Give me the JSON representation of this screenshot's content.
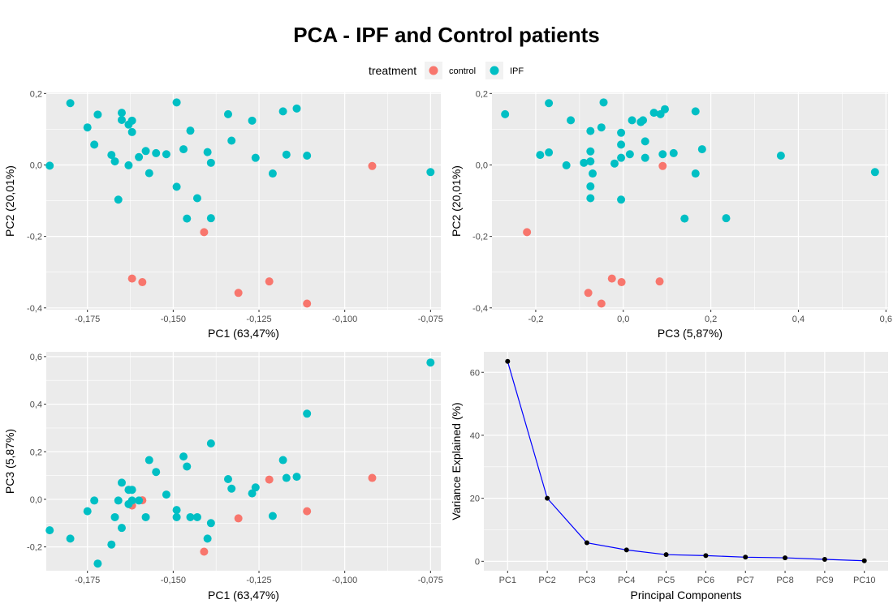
{
  "title": "PCA - IPF and Control patients",
  "legend": {
    "title": "treatment",
    "entries": [
      {
        "label": "control",
        "color": "#F8766D"
      },
      {
        "label": "IPF",
        "color": "#00BFC4"
      }
    ]
  },
  "colors": {
    "control": "#F8766D",
    "IPF": "#00BFC4",
    "panel_bg": "#EBEBEB",
    "grid": "#FFFFFF",
    "variance_line": "#0000FF",
    "variance_point": "#000000"
  },
  "chart_data": [
    {
      "type": "scatter",
      "xlabel": "PC1 (63,47%)",
      "ylabel": "PC2 (20,01%)",
      "xlim": [
        -0.187,
        -0.072
      ],
      "ylim": [
        -0.405,
        0.203
      ],
      "xticks": [
        -0.175,
        -0.15,
        -0.125,
        -0.1,
        -0.075
      ],
      "xtick_labels": [
        "-0,175",
        "-0,150",
        "-0,125",
        "-0,100",
        "-0,075"
      ],
      "yticks": [
        -0.4,
        -0.2,
        0.0,
        0.2
      ],
      "ytick_labels": [
        "-0,4",
        "-0,2",
        "0,0",
        "0,2"
      ],
      "grid": true,
      "series": [
        {
          "name": "control",
          "color": "#F8766D",
          "points": [
            [
              -0.092,
              -0.003
            ],
            [
              -0.141,
              -0.188
            ],
            [
              -0.162,
              -0.318
            ],
            [
              -0.159,
              -0.328
            ],
            [
              -0.131,
              -0.358
            ],
            [
              -0.122,
              -0.326
            ],
            [
              -0.111,
              -0.388
            ]
          ]
        },
        {
          "name": "IPF",
          "color": "#00BFC4",
          "points": [
            [
              -0.18,
              0.173
            ],
            [
              -0.149,
              0.175
            ],
            [
              -0.172,
              0.141
            ],
            [
              -0.165,
              0.146
            ],
            [
              -0.165,
              0.126
            ],
            [
              -0.163,
              0.113
            ],
            [
              -0.162,
              0.124
            ],
            [
              -0.162,
              0.092
            ],
            [
              -0.175,
              0.105
            ],
            [
              -0.134,
              0.142
            ],
            [
              -0.127,
              0.124
            ],
            [
              -0.118,
              0.15
            ],
            [
              -0.114,
              0.158
            ],
            [
              -0.145,
              0.096
            ],
            [
              -0.173,
              0.057
            ],
            [
              -0.168,
              0.028
            ],
            [
              -0.167,
              0.01
            ],
            [
              -0.163,
              -0.001
            ],
            [
              -0.16,
              0.022
            ],
            [
              -0.158,
              0.039
            ],
            [
              -0.155,
              0.033
            ],
            [
              -0.152,
              0.03
            ],
            [
              -0.147,
              0.044
            ],
            [
              -0.14,
              0.036
            ],
            [
              -0.139,
              0.006
            ],
            [
              -0.133,
              0.068
            ],
            [
              -0.126,
              0.02
            ],
            [
              -0.117,
              0.029
            ],
            [
              -0.111,
              0.026
            ],
            [
              -0.157,
              -0.023
            ],
            [
              -0.121,
              -0.024
            ],
            [
              -0.186,
              -0.002
            ],
            [
              -0.075,
              -0.02
            ],
            [
              -0.166,
              -0.097
            ],
            [
              -0.149,
              -0.061
            ],
            [
              -0.143,
              -0.093
            ],
            [
              -0.146,
              -0.15
            ],
            [
              -0.139,
              -0.149
            ]
          ]
        }
      ]
    },
    {
      "type": "scatter",
      "xlabel": "PC3 (5,87%)",
      "ylabel": "PC2 (20,01%)",
      "xlim": [
        -0.3,
        0.605
      ],
      "ylim": [
        -0.405,
        0.203
      ],
      "xticks": [
        -0.2,
        0.0,
        0.2,
        0.4,
        0.6
      ],
      "xtick_labels": [
        "-0,2",
        "0,0",
        "0,2",
        "0,4",
        "0,6"
      ],
      "yticks": [
        -0.4,
        -0.2,
        0.0,
        0.2
      ],
      "ytick_labels": [
        "-0,4",
        "-0,2",
        "0,0",
        "0,2"
      ],
      "grid": true,
      "series": [
        {
          "name": "control",
          "color": "#F8766D",
          "points": [
            [
              0.09,
              -0.003
            ],
            [
              -0.22,
              -0.188
            ],
            [
              -0.026,
              -0.318
            ],
            [
              -0.004,
              -0.328
            ],
            [
              -0.08,
              -0.358
            ],
            [
              0.083,
              -0.326
            ],
            [
              -0.05,
              -0.388
            ]
          ]
        },
        {
          "name": "IPF",
          "color": "#00BFC4",
          "points": [
            [
              -0.27,
              0.142
            ],
            [
              -0.17,
              0.173
            ],
            [
              -0.045,
              0.175
            ],
            [
              -0.12,
              0.125
            ],
            [
              -0.075,
              0.095
            ],
            [
              -0.05,
              0.105
            ],
            [
              -0.005,
              0.09
            ],
            [
              0.02,
              0.125
            ],
            [
              0.04,
              0.12
            ],
            [
              0.045,
              0.125
            ],
            [
              0.07,
              0.146
            ],
            [
              0.085,
              0.142
            ],
            [
              0.095,
              0.156
            ],
            [
              0.165,
              0.15
            ],
            [
              -0.005,
              0.057
            ],
            [
              0.05,
              0.066
            ],
            [
              -0.19,
              0.028
            ],
            [
              -0.17,
              0.035
            ],
            [
              -0.075,
              0.038
            ],
            [
              -0.09,
              0.006
            ],
            [
              -0.075,
              0.01
            ],
            [
              -0.02,
              0.004
            ],
            [
              -0.005,
              0.02
            ],
            [
              0.015,
              0.03
            ],
            [
              0.05,
              0.02
            ],
            [
              0.09,
              0.03
            ],
            [
              0.115,
              0.033
            ],
            [
              0.18,
              0.044
            ],
            [
              0.36,
              0.026
            ],
            [
              -0.13,
              -0.001
            ],
            [
              -0.07,
              -0.024
            ],
            [
              0.165,
              -0.024
            ],
            [
              0.575,
              -0.02
            ],
            [
              -0.075,
              -0.06
            ],
            [
              -0.075,
              -0.093
            ],
            [
              -0.005,
              -0.097
            ],
            [
              0.14,
              -0.15
            ],
            [
              0.235,
              -0.149
            ]
          ]
        }
      ]
    },
    {
      "type": "scatter",
      "xlabel": "PC1 (63,47%)",
      "ylabel": "PC3 (5,87%)",
      "xlim": [
        -0.187,
        -0.072
      ],
      "ylim": [
        -0.3,
        0.62
      ],
      "xticks": [
        -0.175,
        -0.15,
        -0.125,
        -0.1,
        -0.075
      ],
      "xtick_labels": [
        "-0,175",
        "-0,150",
        "-0,125",
        "-0,100",
        "-0,075"
      ],
      "yticks": [
        -0.2,
        0.0,
        0.2,
        0.4,
        0.6
      ],
      "ytick_labels": [
        "-0,2",
        "0,0",
        "0,2",
        "0,4",
        "0,6"
      ],
      "grid": true,
      "series": [
        {
          "name": "control",
          "color": "#F8766D",
          "points": [
            [
              -0.092,
              0.09
            ],
            [
              -0.141,
              -0.22
            ],
            [
              -0.162,
              -0.026
            ],
            [
              -0.159,
              -0.004
            ],
            [
              -0.131,
              -0.08
            ],
            [
              -0.122,
              0.083
            ],
            [
              -0.111,
              -0.05
            ]
          ]
        },
        {
          "name": "IPF",
          "color": "#00BFC4",
          "points": [
            [
              -0.075,
              0.575
            ],
            [
              -0.111,
              0.36
            ],
            [
              -0.139,
              0.235
            ],
            [
              -0.147,
              0.18
            ],
            [
              -0.146,
              0.138
            ],
            [
              -0.157,
              0.165
            ],
            [
              -0.155,
              0.115
            ],
            [
              -0.118,
              0.165
            ],
            [
              -0.117,
              0.09
            ],
            [
              -0.114,
              0.095
            ],
            [
              -0.134,
              0.085
            ],
            [
              -0.133,
              0.045
            ],
            [
              -0.126,
              0.05
            ],
            [
              -0.127,
              0.025
            ],
            [
              -0.165,
              0.07
            ],
            [
              -0.163,
              0.04
            ],
            [
              -0.162,
              0.04
            ],
            [
              -0.152,
              0.02
            ],
            [
              -0.162,
              -0.005
            ],
            [
              -0.16,
              -0.005
            ],
            [
              -0.166,
              -0.005
            ],
            [
              -0.163,
              -0.02
            ],
            [
              -0.173,
              -0.005
            ],
            [
              -0.175,
              -0.05
            ],
            [
              -0.149,
              -0.045
            ],
            [
              -0.167,
              -0.075
            ],
            [
              -0.165,
              -0.12
            ],
            [
              -0.158,
              -0.075
            ],
            [
              -0.149,
              -0.075
            ],
            [
              -0.145,
              -0.075
            ],
            [
              -0.143,
              -0.075
            ],
            [
              -0.139,
              -0.1
            ],
            [
              -0.121,
              -0.07
            ],
            [
              -0.186,
              -0.13
            ],
            [
              -0.18,
              -0.165
            ],
            [
              -0.168,
              -0.19
            ],
            [
              -0.14,
              -0.165
            ],
            [
              -0.172,
              -0.27
            ]
          ]
        }
      ]
    },
    {
      "type": "line",
      "xlabel": "Principal Components",
      "ylabel": "Variance Explained (%)",
      "categories": [
        "PC1",
        "PC2",
        "PC3",
        "PC4",
        "PC5",
        "PC6",
        "PC7",
        "PC8",
        "PC9",
        "PC10"
      ],
      "values": [
        63.47,
        20.01,
        5.87,
        3.6,
        2.1,
        1.8,
        1.3,
        1.1,
        0.6,
        0.15
      ],
      "ylim": [
        -3,
        66.5
      ],
      "yticks": [
        0,
        20,
        40,
        60
      ],
      "ytick_labels": [
        "0",
        "20",
        "40",
        "60"
      ],
      "grid": true
    }
  ]
}
